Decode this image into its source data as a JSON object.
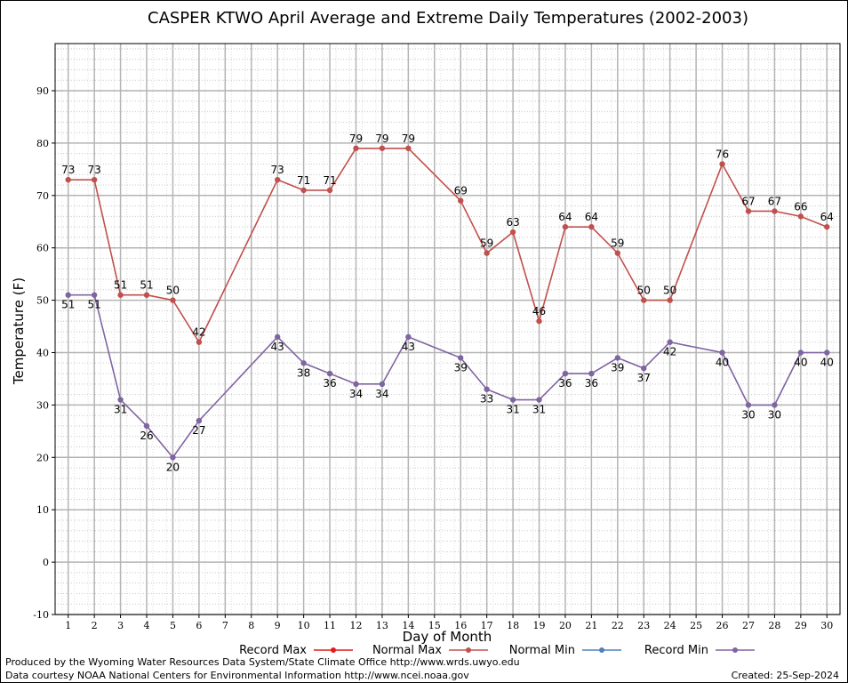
{
  "chart_data": {
    "type": "line",
    "title": "CASPER KTWO April Average and Extreme Daily Temperatures (2002-2003)",
    "xlabel": "Day of Month",
    "ylabel": "Temperature (F)",
    "x": [
      1,
      2,
      3,
      4,
      5,
      6,
      7,
      8,
      9,
      10,
      11,
      12,
      13,
      14,
      15,
      16,
      17,
      18,
      19,
      20,
      21,
      22,
      23,
      24,
      25,
      26,
      27,
      28,
      29,
      30
    ],
    "xlim": [
      0.5,
      30.5
    ],
    "ylim": [
      -10,
      99
    ],
    "yticks": [
      -10,
      0,
      10,
      20,
      30,
      40,
      50,
      60,
      70,
      80,
      90
    ],
    "grid": true,
    "legend_position": "bottom",
    "series": [
      {
        "name": "Record Max",
        "color": "#e41a1c",
        "points": []
      },
      {
        "name": "Normal Max",
        "color": "#c0504d",
        "label_position": "above",
        "points": [
          [
            1,
            73
          ],
          [
            2,
            73
          ],
          [
            3,
            51
          ],
          [
            4,
            51
          ],
          [
            5,
            50
          ],
          [
            6,
            42
          ],
          [
            9,
            73
          ],
          [
            10,
            71
          ],
          [
            11,
            71
          ],
          [
            12,
            79
          ],
          [
            13,
            79
          ],
          [
            14,
            79
          ],
          [
            16,
            69
          ],
          [
            17,
            59
          ],
          [
            18,
            63
          ],
          [
            19,
            46
          ],
          [
            20,
            64
          ],
          [
            21,
            64
          ],
          [
            22,
            59
          ],
          [
            23,
            50
          ],
          [
            24,
            50
          ],
          [
            26,
            76
          ],
          [
            27,
            67
          ],
          [
            28,
            67
          ],
          [
            29,
            66
          ],
          [
            30,
            64
          ]
        ]
      },
      {
        "name": "Normal Min",
        "color": "#4f81bd",
        "points": []
      },
      {
        "name": "Record Min",
        "color": "#8064a2",
        "label_position": "below",
        "points": [
          [
            1,
            51
          ],
          [
            2,
            51
          ],
          [
            3,
            31
          ],
          [
            4,
            26
          ],
          [
            5,
            20
          ],
          [
            6,
            27
          ],
          [
            9,
            43
          ],
          [
            10,
            38
          ],
          [
            11,
            36
          ],
          [
            12,
            34
          ],
          [
            13,
            34
          ],
          [
            14,
            43
          ],
          [
            16,
            39
          ],
          [
            17,
            33
          ],
          [
            18,
            31
          ],
          [
            19,
            31
          ],
          [
            20,
            36
          ],
          [
            21,
            36
          ],
          [
            22,
            39
          ],
          [
            23,
            37
          ],
          [
            24,
            42
          ],
          [
            26,
            40
          ],
          [
            27,
            30
          ],
          [
            28,
            30
          ],
          [
            29,
            40
          ],
          [
            30,
            40
          ]
        ]
      }
    ]
  },
  "footer": {
    "produced_by": "Produced by the Wyoming Water Resources Data System/State Climate Office http://www.wrds.uwyo.edu",
    "data_courtesy": "Data courtesy NOAA National Centers for Environmental Information http://www.ncei.noaa.gov",
    "created": "Created:  25-Sep-2024"
  }
}
